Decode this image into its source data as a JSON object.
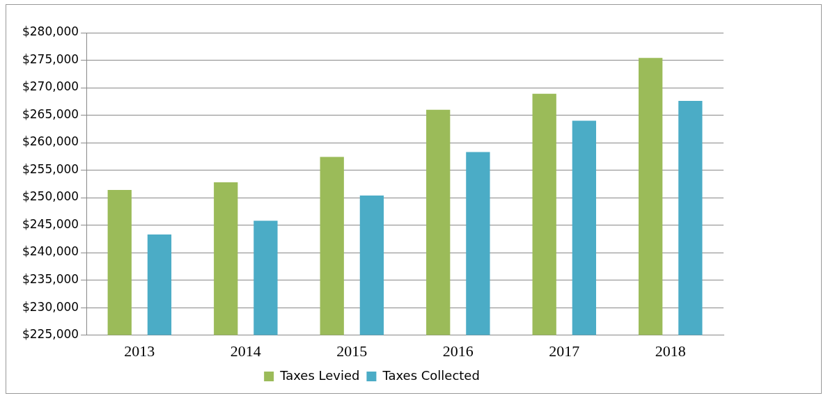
{
  "chart_data": {
    "type": "bar",
    "categories": [
      "2013",
      "2014",
      "2015",
      "2016",
      "2017",
      "2018"
    ],
    "series": [
      {
        "name": "Taxes Levied",
        "color": "#9bbb59",
        "values": [
          251400,
          252800,
          257400,
          266000,
          268900,
          275400
        ]
      },
      {
        "name": "Taxes Collected",
        "color": "#4bacc6",
        "values": [
          243300,
          245800,
          250400,
          258300,
          264000,
          267600
        ]
      }
    ],
    "ylim": [
      225000,
      280000
    ],
    "yticks": [
      {
        "value": 225000,
        "label": "$225,000"
      },
      {
        "value": 230000,
        "label": "$230,000"
      },
      {
        "value": 235000,
        "label": "$235,000"
      },
      {
        "value": 240000,
        "label": "$240,000"
      },
      {
        "value": 245000,
        "label": "$245,000"
      },
      {
        "value": 250000,
        "label": "$250,000"
      },
      {
        "value": 255000,
        "label": "$255,000"
      },
      {
        "value": 260000,
        "label": "$260,000"
      },
      {
        "value": 265000,
        "label": "$265,000"
      },
      {
        "value": 270000,
        "label": "$270,000"
      },
      {
        "value": 275000,
        "label": "$275,000"
      },
      {
        "value": 280000,
        "label": "$280,000"
      }
    ],
    "grid": "y",
    "legend": "bottom"
  }
}
